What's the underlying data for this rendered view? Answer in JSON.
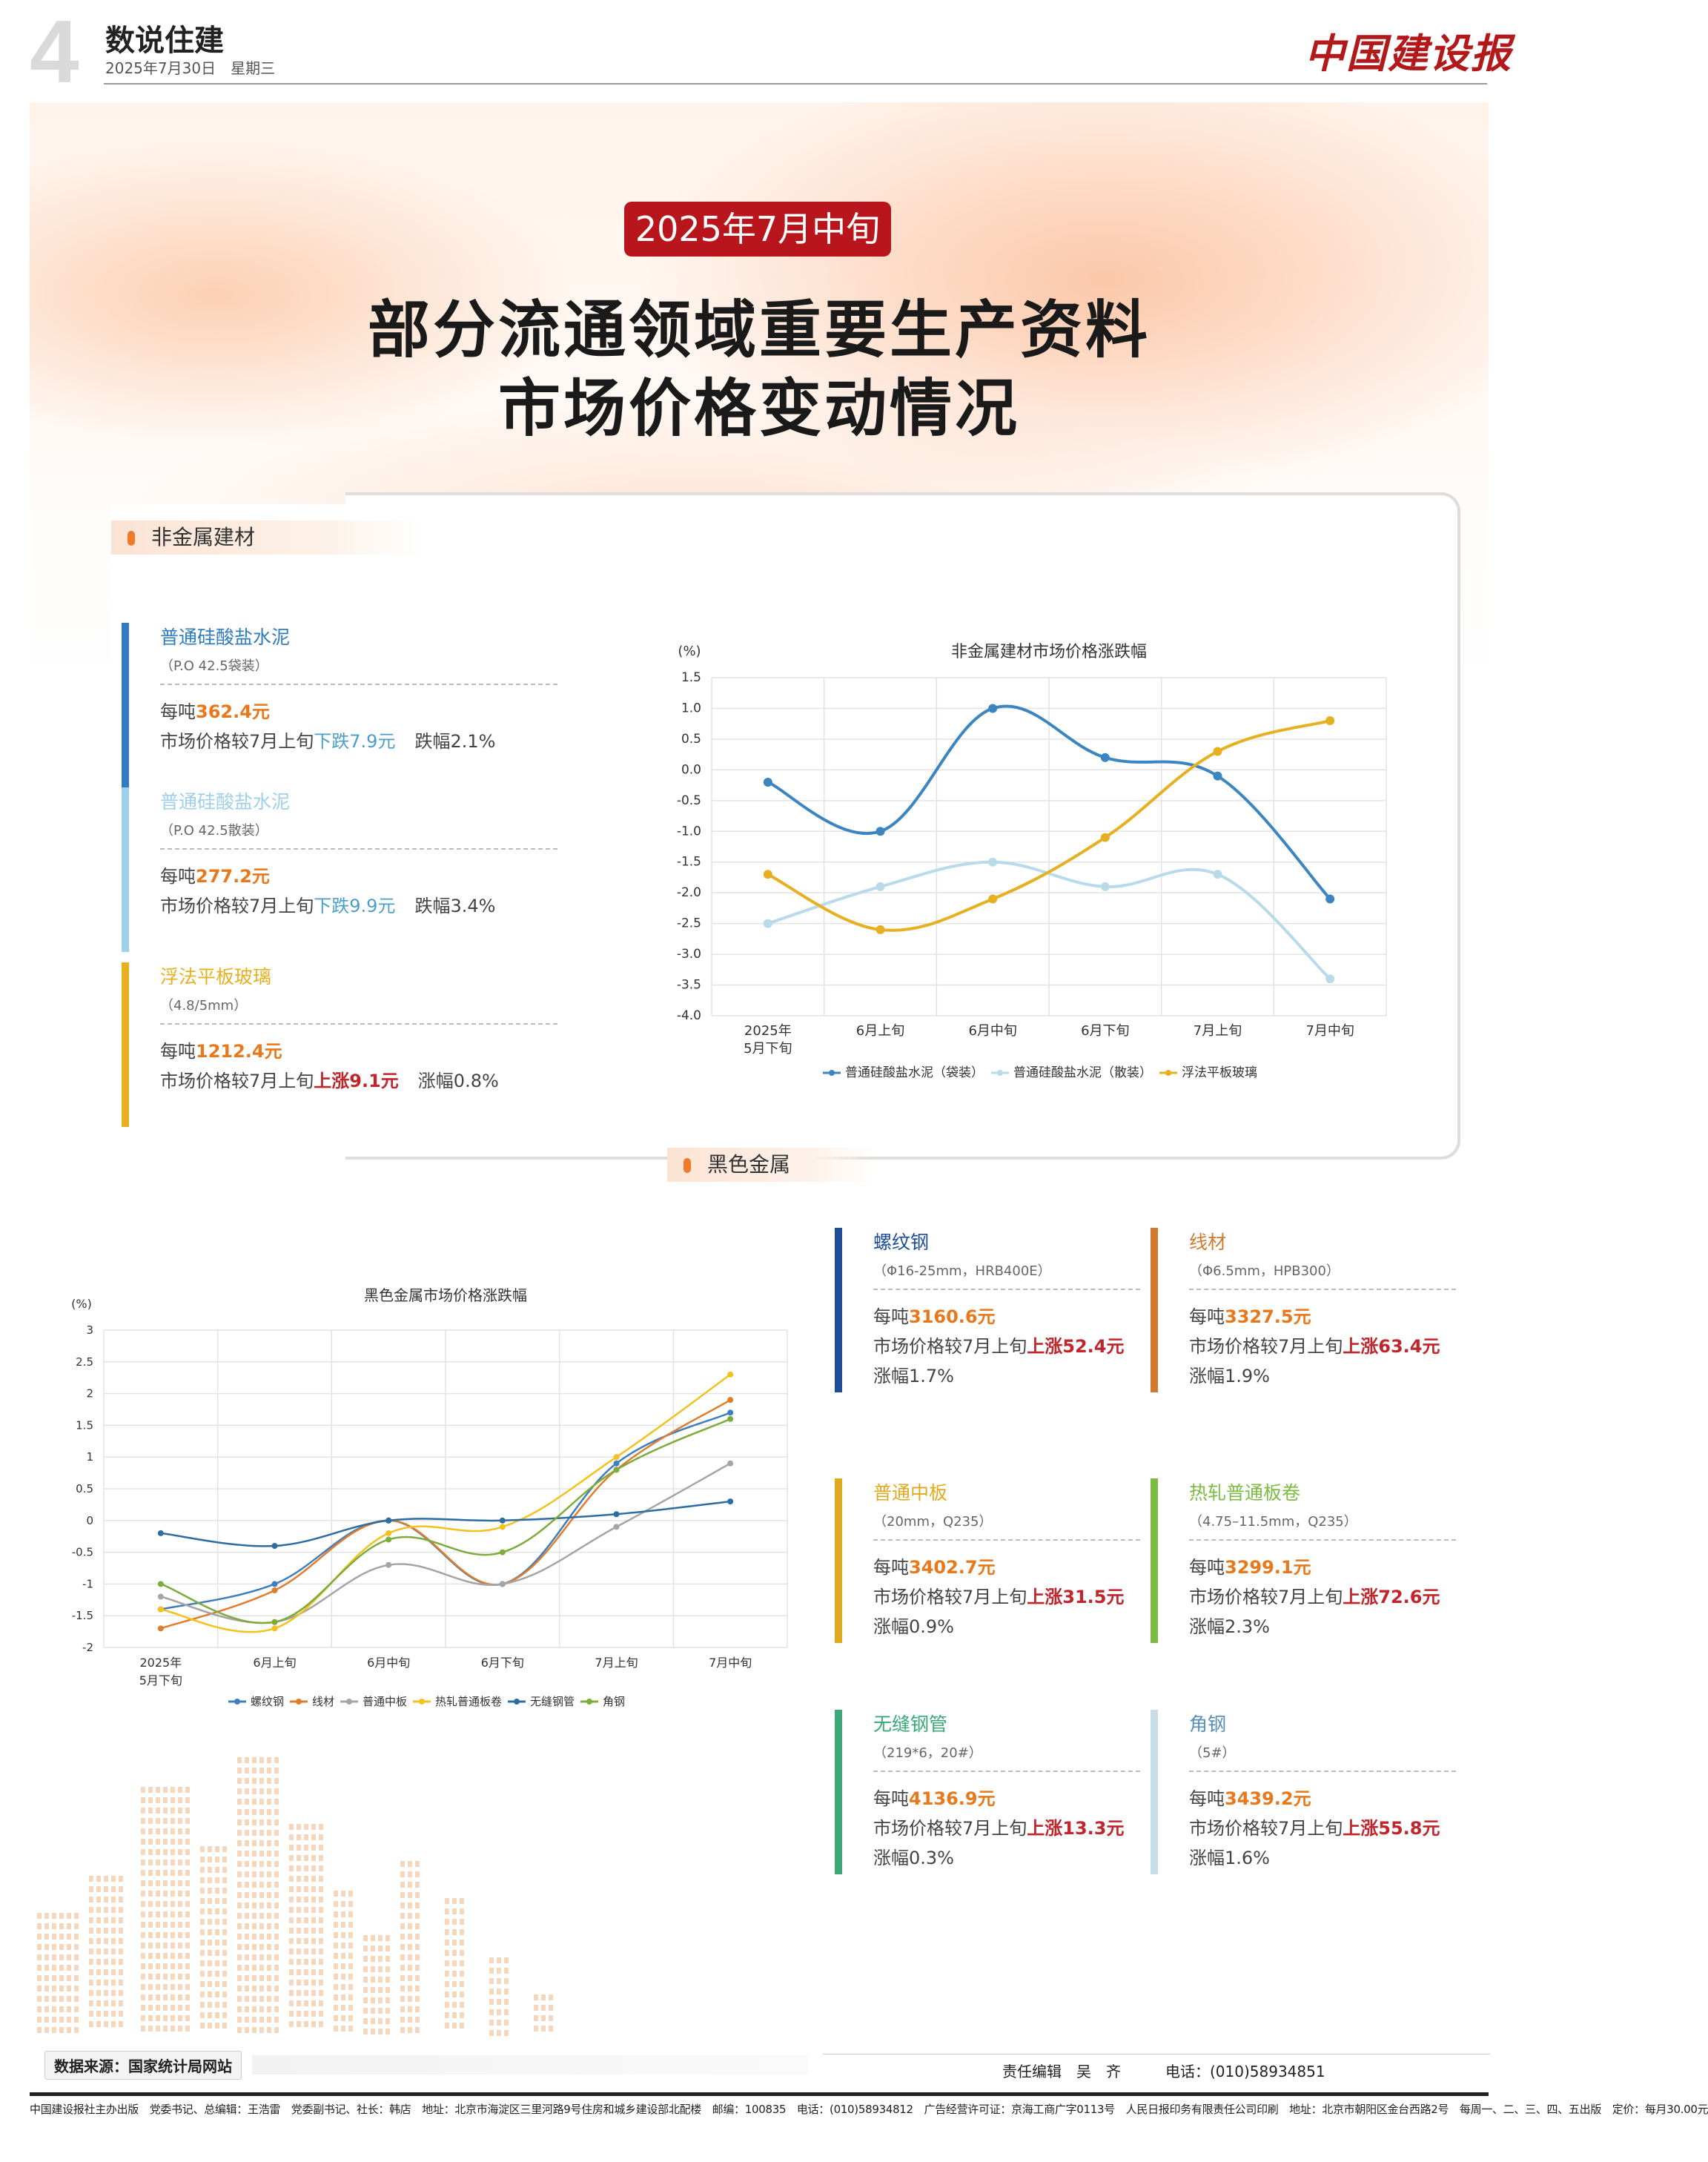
{
  "header": {
    "page_number": "4",
    "section": "数说住建",
    "date": "2025年7月30日　星期三",
    "masthead": "中国建设报"
  },
  "badge": "2025年7月中旬",
  "title": {
    "line1": "部分流通领域重要生产资料",
    "line2": "市场价格变动情况"
  },
  "nonmetal": {
    "tag": "非金属建材",
    "cards": [
      {
        "name": "普通硅酸盐水泥",
        "spec": "（P.O 42.5袋装）",
        "prefix": "每吨",
        "price": "362.4元",
        "compare": "市场价格较7月上旬",
        "change": "下跌7.9元",
        "rate": "跌幅2.1%",
        "color": "#2f7dbf"
      },
      {
        "name": "普通硅酸盐水泥",
        "spec": "（P.O 42.5散装）",
        "prefix": "每吨",
        "price": "277.2元",
        "compare": "市场价格较7月上旬",
        "change": "下跌9.9元",
        "rate": "跌幅3.4%",
        "color": "#9fd0ea"
      },
      {
        "name": "浮法平板玻璃",
        "spec": "（4.8/5mm）",
        "prefix": "每吨",
        "price": "1212.4元",
        "compare": "市场价格较7月上旬",
        "change": "上涨9.1元",
        "rate": "涨幅0.8%",
        "color": "#e6b021"
      }
    ]
  },
  "ferrous": {
    "tag": "黑色金属",
    "cards": [
      {
        "name": "螺纹钢",
        "spec": "（Φ16-25mm，HRB400E）",
        "prefix": "每吨",
        "price": "3160.6元",
        "compare": "市场价格较7月上旬",
        "change": "上涨52.4元",
        "rate": "涨幅1.7%",
        "color": "#1f4e99"
      },
      {
        "name": "线材",
        "spec": "（Φ6.5mm，HPB300）",
        "prefix": "每吨",
        "price": "3327.5元",
        "compare": "市场价格较7月上旬",
        "change": "上涨63.4元",
        "rate": "涨幅1.9%",
        "color": "#d07a30"
      },
      {
        "name": "普通中板",
        "spec": "（20mm，Q235）",
        "prefix": "每吨",
        "price": "3402.7元",
        "compare": "市场价格较7月上旬",
        "change": "上涨31.5元",
        "rate": "涨幅0.9%",
        "color": "#e0aa1e"
      },
      {
        "name": "热轧普通板卷",
        "spec": "（4.75–11.5mm，Q235）",
        "prefix": "每吨",
        "price": "3299.1元",
        "compare": "市场价格较7月上旬",
        "change": "上涨72.6元",
        "rate": "涨幅2.3%",
        "color": "#7dbb42"
      },
      {
        "name": "无缝钢管",
        "spec": "（219*6，20#）",
        "prefix": "每吨",
        "price": "4136.9元",
        "compare": "市场价格较7月上旬",
        "change": "上涨13.3元",
        "rate": "涨幅0.3%",
        "color": "#3aa878"
      },
      {
        "name": "角钢",
        "spec": "（5#）",
        "prefix": "每吨",
        "price": "3439.2元",
        "compare": "市场价格较7月上旬",
        "change": "上涨55.8元",
        "rate": "涨幅1.6%",
        "color": "#c9dde9"
      }
    ]
  },
  "chart_data": [
    {
      "type": "line",
      "title": "非金属建材市场价格涨跌幅",
      "ylabel": "(%)",
      "categories": [
        "2025年\n5月下旬",
        "6月上旬",
        "6月中旬",
        "6月下旬",
        "7月上旬",
        "7月中旬"
      ],
      "ylim": [
        -4.0,
        1.5
      ],
      "yticks": [
        "1.5",
        "1.0",
        "0.5",
        "0.0",
        "-0.5",
        "-1.0",
        "-1.5",
        "-2.0",
        "-2.5",
        "-3.0",
        "-3.5",
        "-4.0"
      ],
      "grid": true,
      "legend": "bottom",
      "series": [
        {
          "name": "普通硅酸盐水泥（袋装）",
          "color": "#3d85c0",
          "values": [
            -0.2,
            -1.0,
            1.0,
            0.2,
            -0.1,
            -2.1
          ]
        },
        {
          "name": "普通硅酸盐水泥（散装）",
          "color": "#b9dbe9",
          "values": [
            -2.5,
            -1.9,
            -1.5,
            -1.9,
            -1.7,
            -3.4
          ]
        },
        {
          "name": "浮法平板玻璃",
          "color": "#e6b021",
          "values": [
            -1.7,
            -2.6,
            -2.1,
            -1.1,
            0.3,
            0.8
          ]
        }
      ]
    },
    {
      "type": "line",
      "title": "黑色金属市场价格涨跌幅",
      "ylabel": "(%)",
      "categories": [
        "2025年\n5月下旬",
        "6月上旬",
        "6月中旬",
        "6月下旬",
        "7月上旬",
        "7月中旬"
      ],
      "ylim": [
        -2,
        3
      ],
      "yticks": [
        "3",
        "2.5",
        "2",
        "1.5",
        "1",
        "0.5",
        "0",
        "-0.5",
        "-1",
        "-1.5",
        "-2"
      ],
      "grid": true,
      "legend": "bottom",
      "series": [
        {
          "name": "螺纹钢",
          "color": "#3f7fbe",
          "values": [
            -1.4,
            -1.0,
            0.0,
            -1.0,
            0.9,
            1.7
          ]
        },
        {
          "name": "线材",
          "color": "#e07d2c",
          "values": [
            -1.7,
            -1.1,
            0.0,
            -1.0,
            0.8,
            1.9
          ]
        },
        {
          "name": "普通中板",
          "color": "#a5a5a5",
          "values": [
            -1.2,
            -1.6,
            -0.7,
            -1.0,
            -0.1,
            0.9
          ]
        },
        {
          "name": "热轧普通板卷",
          "color": "#f3c21e",
          "values": [
            -1.4,
            -1.7,
            -0.2,
            -0.1,
            1.0,
            2.3
          ]
        },
        {
          "name": "无缝钢管",
          "color": "#2e6ca4",
          "values": [
            -0.2,
            -0.4,
            0.0,
            0.0,
            0.1,
            0.3
          ]
        },
        {
          "name": "角钢",
          "color": "#7dab3c",
          "values": [
            -1.0,
            -1.6,
            -0.3,
            -0.5,
            0.8,
            1.6
          ]
        }
      ]
    }
  ],
  "footer": {
    "source": "数据来源：国家统计局网站",
    "editor": "责任编辑　吴　齐",
    "phone": "电话：(010)58934851",
    "imprint": "中国建设报社主办出版　党委书记、总编辑：王浩雷　党委副书记、社长：韩店　地址：北京市海淀区三里河路9号住房和城乡建设部北配楼　邮编：100835　电话：(010)58934812　广告经营许可证：京海工商广字0113号　人民日报印务有限责任公司印刷　地址：北京市朝阳区金台西路2号　每周一、二、三、四、五出版　定价：每月30.00元"
  }
}
